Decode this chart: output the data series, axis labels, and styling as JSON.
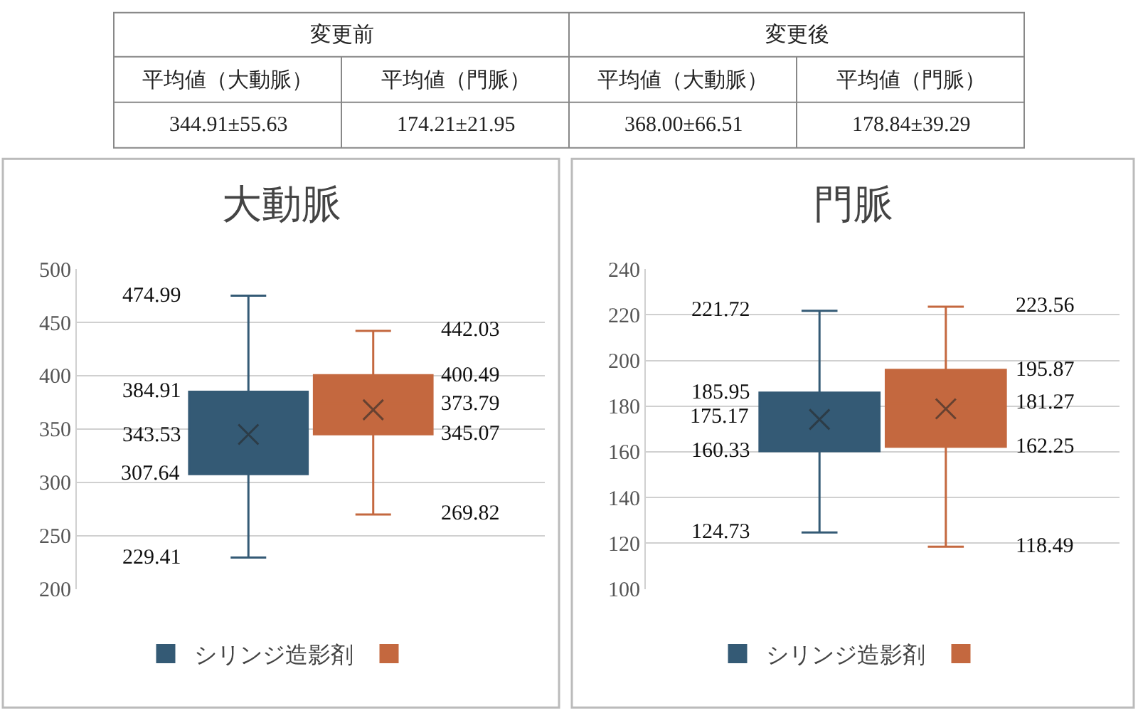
{
  "chart_data": [
    {
      "type": "other",
      "annotations": [
        "変更前",
        "変更後",
        "平均値（大動脈）",
        "平均値（門脈）",
        "平均値（大動脈）",
        "平均値（門脈）",
        "344.91±55.63",
        "174.21±21.95",
        "368.00±66.51",
        "178.84±39.29"
      ]
    },
    {
      "type": "box",
      "title": "大動脈",
      "categories": [
        null
      ],
      "series": [
        {
          "name": "シリンジ造影剤",
          "color": "#345a75",
          "boxes": [
            {
              "low": 229.41,
              "q1": 307.64,
              "median": 343.53,
              "q3": 384.91,
              "high": 474.99,
              "mean": 344.91
            }
          ],
          "value_labels": [
            [
              "474.99",
              "384.91",
              "343.53",
              "307.64",
              "229.41"
            ]
          ]
        },
        {
          "color": "#c4683f",
          "boxes": [
            {
              "low": 269.82,
              "q1": 345.07,
              "median": 373.79,
              "q3": 400.49,
              "high": 442.03,
              "mean": 368.0
            }
          ],
          "value_labels": [
            [
              "442.03",
              "400.49",
              "373.79",
              "345.07",
              "269.82"
            ]
          ]
        }
      ],
      "ylim": [
        200,
        500
      ],
      "yticks": [
        200,
        250,
        300,
        350,
        400,
        450,
        500
      ],
      "grid": "y",
      "legend": "bottom"
    },
    {
      "type": "box",
      "title": "門脈",
      "categories": [
        null
      ],
      "series": [
        {
          "name": "シリンジ造影剤",
          "color": "#345a75",
          "boxes": [
            {
              "low": 124.73,
              "q1": 160.33,
              "median": 175.17,
              "q3": 185.95,
              "high": 221.72,
              "mean": 174.21
            }
          ],
          "value_labels": [
            [
              "221.72",
              "185.95",
              "175.17",
              "160.33",
              "124.73"
            ]
          ]
        },
        {
          "color": "#c4683f",
          "boxes": [
            {
              "low": 118.49,
              "q1": 162.25,
              "median": 181.27,
              "q3": 195.87,
              "high": 223.56,
              "mean": 178.84
            }
          ],
          "value_labels": [
            [
              "223.56",
              "195.87",
              "181.27",
              "162.25",
              "118.49"
            ]
          ]
        }
      ],
      "ylim": [
        100,
        240
      ],
      "yticks": [
        100,
        120,
        140,
        160,
        180,
        200,
        220,
        240
      ],
      "grid": "y",
      "legend": "bottom"
    }
  ]
}
